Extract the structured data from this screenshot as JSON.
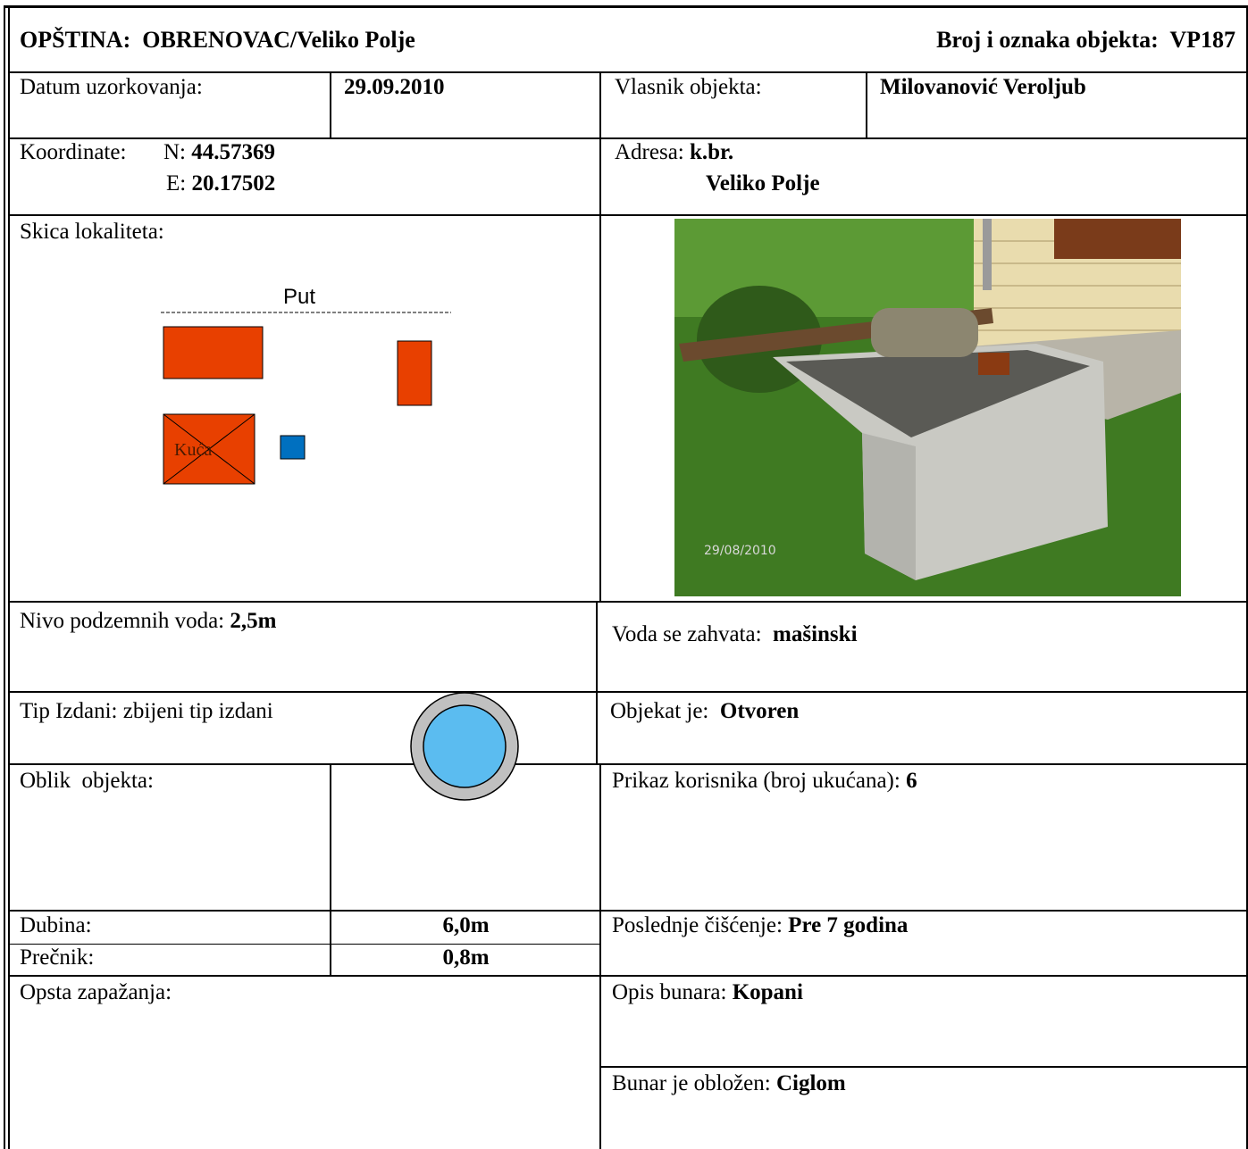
{
  "header": {
    "municipality_label": "OPŠTINA:",
    "municipality": "OBRENOVAC/Veliko Polje",
    "object_id_label": "Broj i oznaka objekta:",
    "object_id": "VP187"
  },
  "sampling_date": {
    "label": "Datum uzorkovanja:",
    "value": "29.09.2010"
  },
  "owner": {
    "label": "Vlasnik objekta:",
    "value": "Milovanović Veroljub"
  },
  "coordinates": {
    "label": "Koordinate:",
    "n_label": "N:",
    "n": "44.57369",
    "e_label": "E:",
    "e": "20.17502"
  },
  "address": {
    "label": "Adresa:",
    "line1": "k.br.",
    "line2": "Veliko Polje"
  },
  "sketch": {
    "label": "Skica lokaliteta:",
    "road": "Put",
    "house": "Kuća"
  },
  "photo": {
    "timestamp": "29/08/2010"
  },
  "groundwater_level": {
    "label": "Nivo podzemnih voda:",
    "value": "2,5m"
  },
  "water_intake": {
    "label": "Voda se zahvata:",
    "value": "mašinski"
  },
  "aquifer_type": {
    "label": "Tip Izdani: zbijeni tip izdani"
  },
  "object_state": {
    "label": "Objekat je:",
    "value": "Otvoren"
  },
  "object_shape": {
    "label": "Oblik  objekta:"
  },
  "users": {
    "label": "Prikaz korisnika (broj ukućana):",
    "value": "6"
  },
  "depth": {
    "label": "Dubina:",
    "value": "6,0m"
  },
  "diameter": {
    "label": "Prečnik:",
    "value": "0,8m"
  },
  "last_cleaning": {
    "label": "Poslednje čišćenje:",
    "value": "Pre 7 godina"
  },
  "observations": {
    "label": "Opsta zapažanja:"
  },
  "well_description": {
    "label": "Opis bunara:",
    "value": "Kopani"
  },
  "well_lining": {
    "label": "Bunar je obložen:",
    "value": "Ciglom"
  }
}
